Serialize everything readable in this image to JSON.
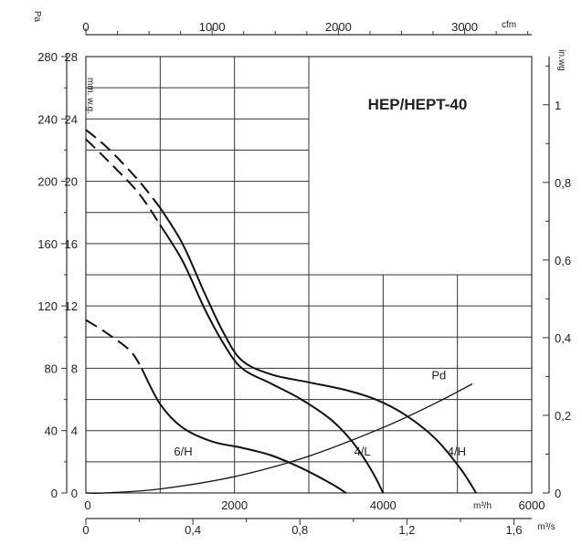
{
  "chart_data": {
    "type": "line",
    "title": "HEP/HEPT-40",
    "colors": {
      "curve": "#111111",
      "grid": "#333333",
      "background": "#ffffff"
    },
    "axes": {
      "x_m3h": {
        "label": "m³/h",
        "range": [
          0,
          6000
        ],
        "ticks": [
          "0",
          "2000",
          "4000",
          "6000"
        ]
      },
      "x_cfm": {
        "label": "cfm",
        "range_cfm": [
          0,
          3531
        ],
        "ticks": [
          "0",
          "1000",
          "2000",
          "3000"
        ],
        "tick_values": [
          0,
          1000,
          2000,
          3000
        ]
      },
      "x_m3s": {
        "label": "m³/s",
        "range": [
          0,
          1.6667
        ],
        "ticks": [
          "0",
          "0,4",
          "0,8",
          "1,2",
          "1,6"
        ],
        "tick_values": [
          0,
          0.4,
          0.8,
          1.2,
          1.6
        ]
      },
      "y_pa": {
        "label": "Pa",
        "range": [
          0,
          280
        ],
        "ticks": [
          "0",
          "40",
          "80",
          "120",
          "160",
          "200",
          "240",
          "280"
        ]
      },
      "y_mmwg": {
        "label": "mm. w.g.",
        "range": [
          0,
          28
        ],
        "ticks": [
          "0",
          "4",
          "8",
          "12",
          "16",
          "20",
          "24",
          "28"
        ]
      },
      "y_inwg": {
        "label": "in.wg",
        "range": [
          0,
          1.1
        ],
        "ticks": [
          "0",
          "0,2",
          "0,4",
          "0,6",
          "0,8",
          "1"
        ],
        "tick_values": [
          0,
          0.2,
          0.4,
          0.6,
          0.8,
          1.0
        ]
      }
    },
    "grid": true,
    "series": [
      {
        "name": "4/H",
        "dashed": {
          "x": [
            0,
            300,
            700,
            1000
          ],
          "y": [
            233,
            221,
            201,
            183
          ]
        },
        "solid": {
          "x": [
            1000,
            1300,
            1600,
            1850,
            2100,
            2500,
            3000,
            3500,
            3900,
            4300,
            4700,
            5050,
            5250
          ],
          "y": [
            183,
            160,
            128,
            103,
            85,
            76,
            71,
            66,
            60,
            50,
            35,
            15,
            0
          ]
        }
      },
      {
        "name": "4/L",
        "dashed": {
          "x": [
            0,
            300,
            700,
            1000
          ],
          "y": [
            227,
            213,
            193,
            172
          ]
        },
        "solid": {
          "x": [
            1000,
            1300,
            1600,
            1850,
            2100,
            2500,
            2900,
            3300,
            3600,
            3850,
            4000
          ],
          "y": [
            172,
            149,
            118,
            96,
            80,
            70,
            60,
            47,
            32,
            14,
            0
          ]
        }
      },
      {
        "name": "6/H",
        "dashed": {
          "x": [
            0,
            300,
            600,
            750
          ],
          "y": [
            111,
            102,
            91,
            80
          ]
        },
        "solid": {
          "x": [
            750,
            1000,
            1300,
            1700,
            2100,
            2500,
            2900,
            3300,
            3500
          ],
          "y": [
            80,
            57,
            42,
            33,
            29,
            24,
            16,
            6,
            0
          ]
        }
      },
      {
        "name": "Pd",
        "solid": {
          "x": [
            0,
            250,
            1000,
            2000,
            3000,
            4000,
            4700,
            5200
          ],
          "y": [
            0,
            0,
            2.6,
            10.5,
            23.6,
            42,
            57.5,
            70
          ]
        }
      }
    ],
    "labels": [
      {
        "text": "6/H",
        "x": 1310,
        "y": 24
      },
      {
        "text": "4/L",
        "x": 3720,
        "y": 24
      },
      {
        "text": "4/H",
        "x": 4990,
        "y": 24
      },
      {
        "text": "Pd",
        "x": 4750,
        "y": 73
      }
    ]
  }
}
